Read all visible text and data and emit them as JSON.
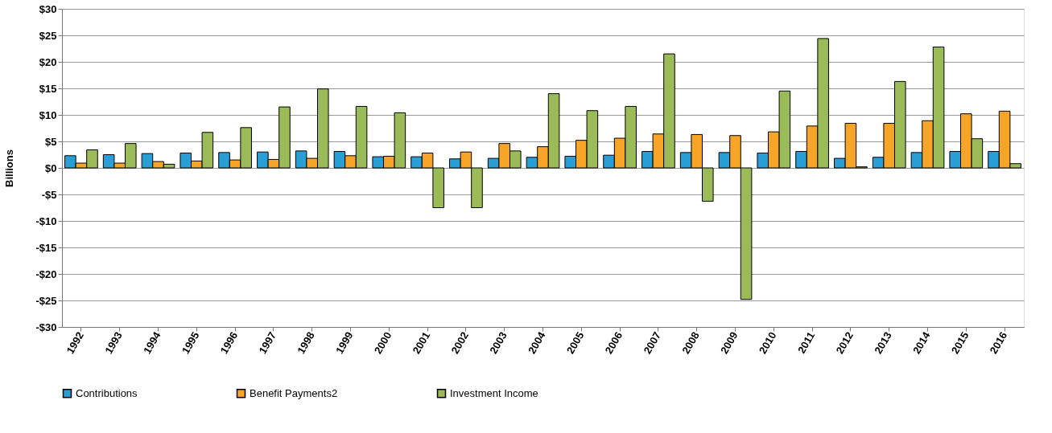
{
  "chart_data": {
    "type": "bar",
    "ylabel": "Billions",
    "categories": [
      "1992",
      "1993",
      "1994",
      "1995",
      "1996",
      "1997",
      "1998",
      "1999",
      "2000",
      "2001",
      "2002",
      "2003",
      "2004",
      "2005",
      "2006",
      "2007",
      "2008",
      "2009",
      "2010",
      "2011",
      "2012",
      "2013",
      "2014",
      "2015",
      "2016"
    ],
    "series": [
      {
        "name": "Contributions",
        "color": "#2a9fd6",
        "values": [
          2.3,
          2.5,
          2.7,
          2.8,
          2.9,
          3.0,
          3.2,
          3.1,
          2.1,
          2.1,
          1.7,
          1.8,
          2.0,
          2.2,
          2.4,
          3.1,
          2.9,
          2.9,
          2.8,
          3.1,
          1.8,
          2.0,
          2.9,
          3.1,
          3.1
        ]
      },
      {
        "name": "Benefit Payments2",
        "color": "#f7a528",
        "values": [
          0.9,
          0.9,
          1.2,
          1.3,
          1.5,
          1.6,
          1.8,
          2.3,
          2.2,
          2.8,
          3.0,
          4.6,
          4.0,
          5.2,
          5.6,
          6.4,
          6.3,
          6.1,
          6.8,
          7.9,
          8.4,
          8.4,
          8.9,
          10.2,
          10.7
        ]
      },
      {
        "name": "Investment Income",
        "color": "#9bbb59",
        "values": [
          3.4,
          4.6,
          0.7,
          6.7,
          7.6,
          11.5,
          14.9,
          11.6,
          10.4,
          -7.5,
          -7.5,
          3.2,
          14.0,
          10.8,
          11.6,
          21.5,
          -6.3,
          -24.8,
          14.5,
          24.4,
          0.2,
          16.3,
          22.8,
          5.5,
          0.8
        ]
      }
    ],
    "ylim": [
      -30,
      30
    ],
    "yticks": [
      {
        "value": -30,
        "label": "-$30"
      },
      {
        "value": -25,
        "label": "-$25"
      },
      {
        "value": -20,
        "label": "-$20"
      },
      {
        "value": -15,
        "label": "-$15"
      },
      {
        "value": -10,
        "label": "-$10"
      },
      {
        "value": -5,
        "label": "-$5"
      },
      {
        "value": 0,
        "label": "$0"
      },
      {
        "value": 5,
        "label": "$5"
      },
      {
        "value": 10,
        "label": "$10"
      },
      {
        "value": 15,
        "label": "$15"
      },
      {
        "value": 20,
        "label": "$20"
      },
      {
        "value": 25,
        "label": "$25"
      },
      {
        "value": 30,
        "label": "$30"
      }
    ],
    "grid": "y",
    "legend": "bottom"
  }
}
